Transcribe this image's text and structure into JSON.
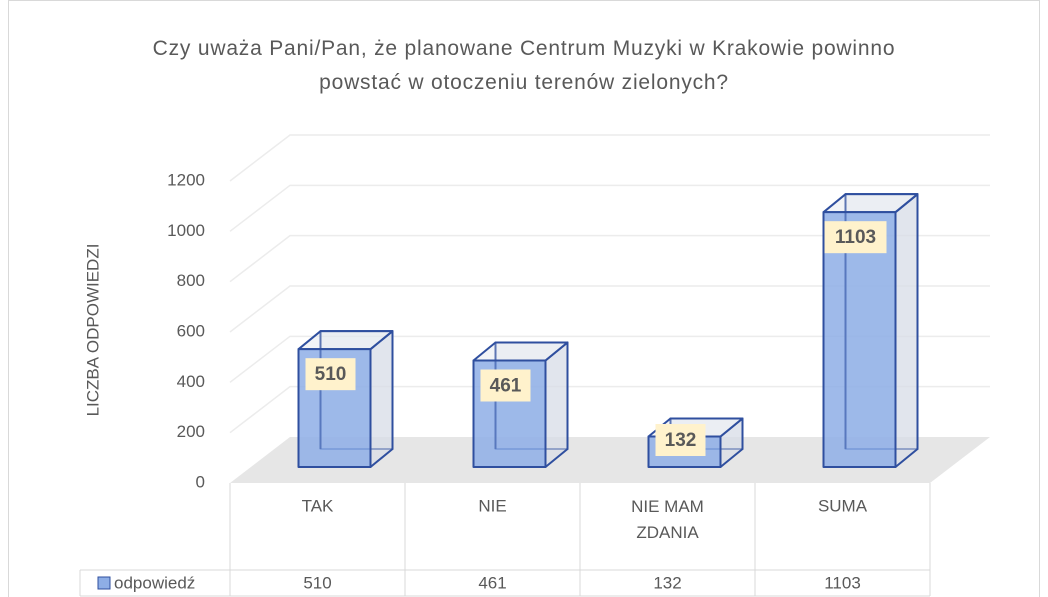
{
  "chart_data": {
    "type": "bar3d",
    "title": "Czy uważa Pani/Pan, że planowane Centrum Muzyki w Krakowie powinno powstać w otoczeniu terenów zielonych?",
    "y_label": "LICZBA ODPOWIEDZI",
    "categories": [
      "TAK",
      "NIE",
      "NIE MAM ZDANIA",
      "SUMA"
    ],
    "series": [
      {
        "name": "odpowiedź",
        "color": "#8eaee6",
        "values": [
          510,
          461,
          132,
          1103
        ]
      }
    ],
    "ylim": [
      0,
      1200
    ],
    "yticks": [
      0,
      200,
      400,
      600,
      800,
      1000,
      1200
    ],
    "grid": true,
    "data_table": true
  }
}
